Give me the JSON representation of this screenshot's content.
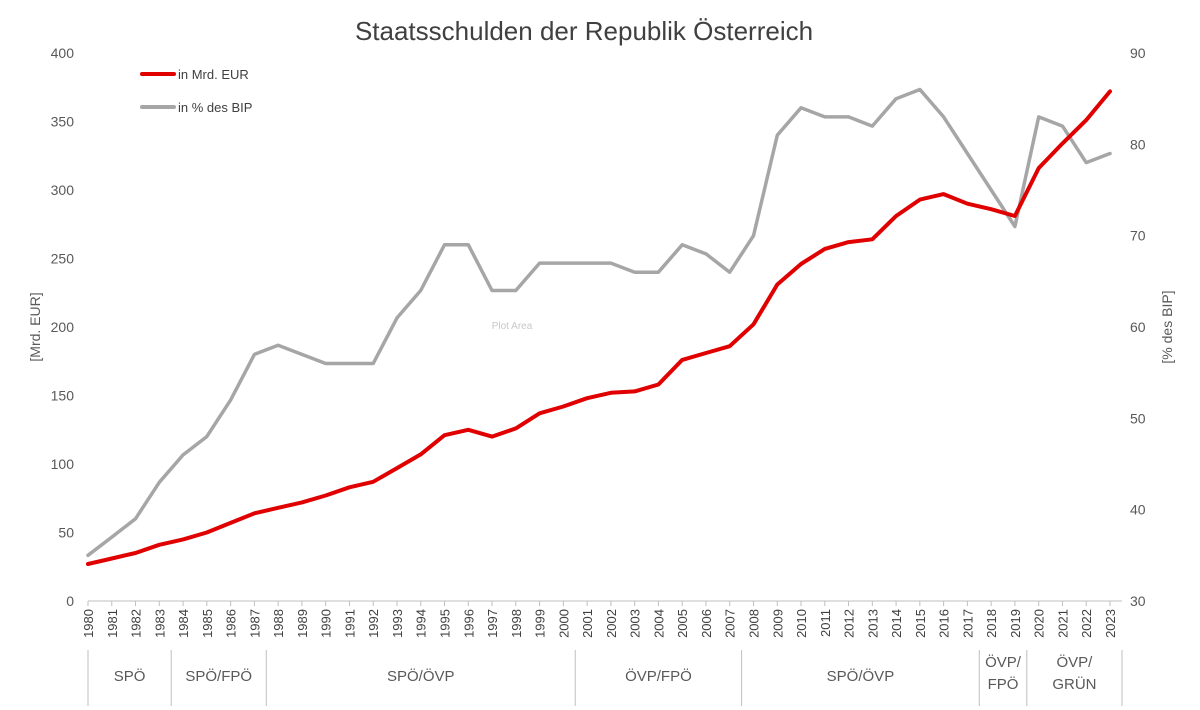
{
  "chart_data": {
    "type": "line",
    "title": "Staatsschulden der Republik Österreich",
    "ylabel": "[Mrd. EUR]",
    "y2label": "[% des BIP]",
    "ylim": [
      0,
      400
    ],
    "yticks": [
      0,
      50,
      100,
      150,
      200,
      250,
      300,
      350,
      400
    ],
    "y2lim": [
      30,
      90
    ],
    "y2ticks": [
      30,
      40,
      50,
      60,
      70,
      80,
      90
    ],
    "grid": false,
    "legend_position": "top-left",
    "plot_area_text": "Plot Area",
    "x": [
      1980,
      1981,
      1982,
      1983,
      1984,
      1985,
      1986,
      1987,
      1988,
      1989,
      1990,
      1991,
      1992,
      1993,
      1994,
      1995,
      1996,
      1997,
      1998,
      1999,
      2000,
      2001,
      2002,
      2003,
      2004,
      2005,
      2006,
      2007,
      2008,
      2009,
      2010,
      2011,
      2012,
      2013,
      2014,
      2015,
      2016,
      2017,
      2018,
      2019,
      2020,
      2021,
      2022,
      2023
    ],
    "series": [
      {
        "name": "in Mrd. EUR",
        "axis": "left",
        "color": "#e00000",
        "values": [
          27,
          31,
          35,
          41,
          45,
          50,
          57,
          64,
          68,
          72,
          77,
          83,
          87,
          97,
          107,
          121,
          125,
          120,
          126,
          137,
          142,
          148,
          152,
          153,
          158,
          176,
          181,
          186,
          202,
          231,
          246,
          257,
          262,
          264,
          281,
          293,
          297,
          290,
          286,
          281,
          316,
          334,
          351,
          372
        ]
      },
      {
        "name": "in % des BIP",
        "axis": "right",
        "color": "#a6a6a6",
        "values": [
          35,
          37,
          39,
          43,
          46,
          48,
          52,
          57,
          58,
          57,
          56,
          56,
          56,
          61,
          64,
          69,
          69,
          64,
          64,
          67,
          67,
          67,
          67,
          66,
          66,
          69,
          68,
          66,
          70,
          81,
          84,
          83,
          83,
          82,
          85,
          86,
          83,
          79,
          75,
          71,
          83,
          82,
          78,
          79
        ]
      }
    ],
    "periods": [
      {
        "label": "SPÖ",
        "from": 1980,
        "to": 1983
      },
      {
        "label": "SPÖ/FPÖ",
        "from": 1983,
        "to": 1987
      },
      {
        "label": "SPÖ/ÖVP",
        "from": 1987,
        "to": 2000
      },
      {
        "label": "ÖVP/FPÖ",
        "from": 2000,
        "to": 2007
      },
      {
        "label": "SPÖ/ÖVP",
        "from": 2007,
        "to": 2017
      },
      {
        "label": "ÖVP/\nFPÖ",
        "from": 2017,
        "to": 2019
      },
      {
        "label": "ÖVP/\nGRÜN",
        "from": 2019,
        "to": 2023
      }
    ]
  }
}
